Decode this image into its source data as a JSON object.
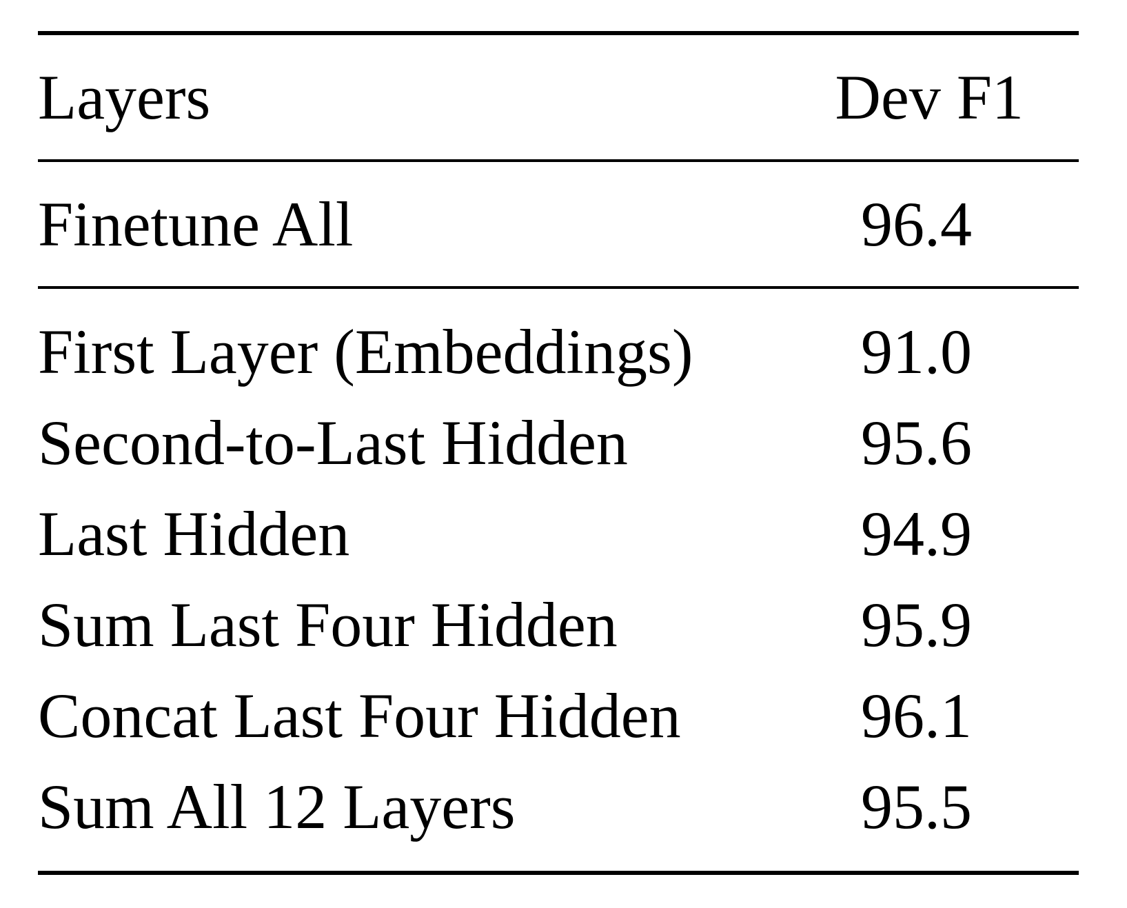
{
  "table": {
    "header": {
      "layers": "Layers",
      "dev_f1": "Dev F1"
    },
    "finetune": {
      "label": "Finetune All",
      "value": "96.4"
    },
    "rows": [
      {
        "label": "First Layer (Embeddings)",
        "value": "91.0"
      },
      {
        "label": "Second-to-Last Hidden",
        "value": "95.6"
      },
      {
        "label": "Last Hidden",
        "value": "94.9"
      },
      {
        "label": "Sum Last Four Hidden",
        "value": "95.9"
      },
      {
        "label": "Concat Last Four Hidden",
        "value": "96.1"
      },
      {
        "label": "Sum All 12 Layers",
        "value": "95.5"
      }
    ]
  }
}
